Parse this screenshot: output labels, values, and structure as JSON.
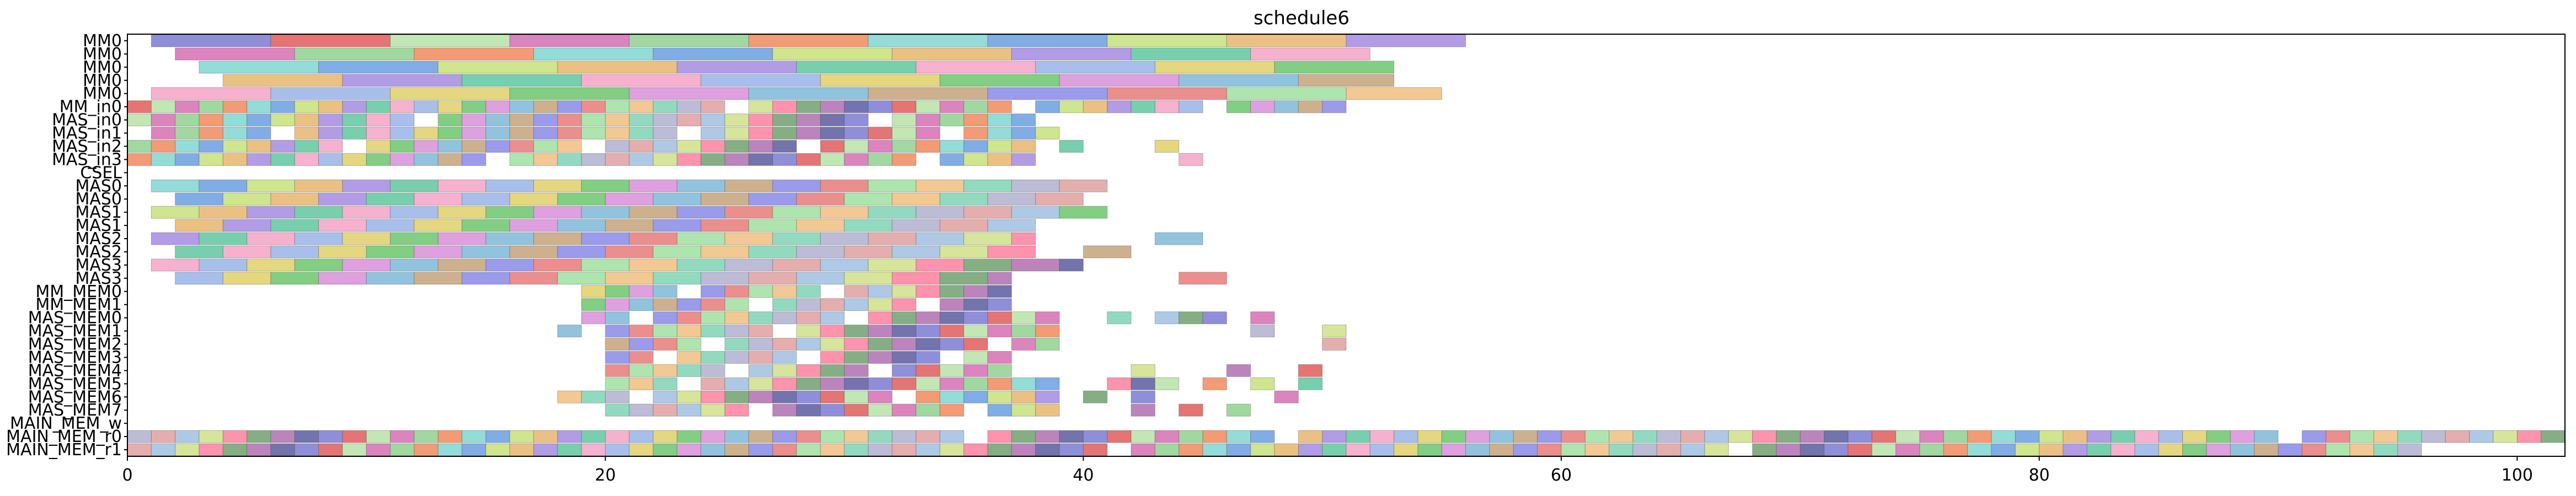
{
  "chart_data": {
    "type": "gantt",
    "title": "schedule6",
    "xlim": [
      0,
      102
    ],
    "xticks": [
      0,
      20,
      40,
      60,
      80,
      100
    ],
    "rows": [
      {
        "label": "MM0",
        "kind": "long",
        "start": 1,
        "end": 56,
        "step": 5,
        "offset": 0
      },
      {
        "label": "MM0",
        "kind": "long",
        "start": 2,
        "end": 52,
        "step": 5,
        "offset": 3
      },
      {
        "label": "MM0",
        "kind": "long",
        "start": 3,
        "end": 53,
        "step": 5,
        "offset": 6
      },
      {
        "label": "MM0",
        "kind": "long",
        "start": 4,
        "end": 53,
        "step": 5,
        "offset": 9
      },
      {
        "label": "MM0",
        "kind": "long",
        "start": 1,
        "end": 55,
        "step": 5,
        "offset": 12
      },
      {
        "label": "MM_in0",
        "kind": "short",
        "start": 0,
        "end": 51,
        "step": 1,
        "offset": 1,
        "gaps": [
          25,
          37,
          45
        ],
        "extra": []
      },
      {
        "label": "MAS_in0",
        "kind": "short",
        "start": 0,
        "end": 38,
        "step": 1,
        "offset": 2,
        "gaps": [
          12,
          31
        ],
        "extra": []
      },
      {
        "label": "MAS_in1",
        "kind": "short",
        "start": 1,
        "end": 39,
        "step": 1,
        "offset": 3,
        "gaps": [
          6,
          23,
          34
        ],
        "extra": []
      },
      {
        "label": "MAS_in2",
        "kind": "short",
        "start": 0,
        "end": 38,
        "step": 1,
        "offset": 4,
        "gaps": [
          9,
          19,
          28
        ],
        "extra": [
          39,
          43
        ]
      },
      {
        "label": "MAS_in3",
        "kind": "short",
        "start": 0,
        "end": 38,
        "step": 1,
        "offset": 5,
        "gaps": [
          15,
          33
        ],
        "extra": [
          44
        ]
      },
      {
        "label": "CSEL",
        "kind": "empty"
      },
      {
        "label": "MAS0",
        "kind": "med",
        "start": 1,
        "end": 41,
        "step": 2,
        "offset": 6
      },
      {
        "label": "MAS0",
        "kind": "med",
        "start": 2,
        "end": 40,
        "step": 2,
        "offset": 7
      },
      {
        "label": "MAS1",
        "kind": "med",
        "start": 1,
        "end": 39,
        "step": 2,
        "offset": 8,
        "extra": [
          39
        ]
      },
      {
        "label": "MAS1",
        "kind": "med",
        "start": 2,
        "end": 38,
        "step": 2,
        "offset": 9
      },
      {
        "label": "MAS2",
        "kind": "med",
        "start": 1,
        "end": 38,
        "step": 2,
        "offset": 10,
        "extra": [
          43
        ]
      },
      {
        "label": "MAS2",
        "kind": "med",
        "start": 2,
        "end": 38,
        "step": 2,
        "offset": 11,
        "extra": [
          40
        ]
      },
      {
        "label": "MAS3",
        "kind": "med",
        "start": 1,
        "end": 40,
        "step": 2,
        "offset": 12
      },
      {
        "label": "MAS3",
        "kind": "med",
        "start": 2,
        "end": 37,
        "step": 2,
        "offset": 13,
        "extra": [
          44
        ]
      },
      {
        "label": "MM_MEM0",
        "kind": "short",
        "start": 19,
        "end": 37,
        "step": 1,
        "offset": 14,
        "gaps": [
          23,
          29
        ],
        "extra": []
      },
      {
        "label": "MM_MEM1",
        "kind": "short",
        "start": 19,
        "end": 37,
        "step": 1,
        "offset": 15,
        "gaps": [
          26,
          33
        ],
        "extra": []
      },
      {
        "label": "MAS_MEM0",
        "kind": "short",
        "start": 19,
        "end": 39,
        "step": 1,
        "offset": 16,
        "gaps": [
          21,
          30
        ],
        "extra": [
          41,
          43,
          44,
          45,
          47
        ]
      },
      {
        "label": "MAS_MEM1",
        "kind": "short",
        "start": 18,
        "end": 39,
        "step": 1,
        "offset": 17,
        "gaps": [
          19,
          27
        ],
        "extra": [
          47,
          50
        ]
      },
      {
        "label": "MAS_MEM2",
        "kind": "short",
        "start": 20,
        "end": 39,
        "step": 1,
        "offset": 18,
        "gaps": [
          24,
          36
        ],
        "extra": [
          50
        ]
      },
      {
        "label": "MAS_MEM3",
        "kind": "short",
        "start": 20,
        "end": 37,
        "step": 1,
        "offset": 19,
        "gaps": [
          22,
          28,
          34
        ],
        "extra": []
      },
      {
        "label": "MAS_MEM4",
        "kind": "short",
        "start": 20,
        "end": 37,
        "step": 1,
        "offset": 20,
        "gaps": [
          25,
          31
        ],
        "extra": [
          42,
          46,
          49
        ]
      },
      {
        "label": "MAS_MEM5",
        "kind": "short",
        "start": 20,
        "end": 39,
        "step": 1,
        "offset": 21,
        "gaps": [
          23
        ],
        "extra": [
          41,
          42,
          43,
          45,
          47,
          49
        ]
      },
      {
        "label": "MAS_MEM6",
        "kind": "short",
        "start": 18,
        "end": 39,
        "step": 1,
        "offset": 22,
        "gaps": [
          21,
          32
        ],
        "extra": [
          40,
          42,
          48
        ]
      },
      {
        "label": "MAS_MEM7",
        "kind": "short",
        "start": 20,
        "end": 39,
        "step": 1,
        "offset": 23,
        "gaps": [
          26,
          35
        ],
        "extra": [
          42,
          44,
          46
        ]
      },
      {
        "label": "MAIN_MEM_w",
        "kind": "empty"
      },
      {
        "label": "MAIN_MEM_r0",
        "kind": "short",
        "start": 0,
        "end": 102,
        "step": 1,
        "offset": 24,
        "gaps": [
          35,
          48,
          90
        ],
        "extra": []
      },
      {
        "label": "MAIN_MEM_r1",
        "kind": "short",
        "start": 0,
        "end": 96,
        "step": 1,
        "offset": 25,
        "gaps": [
          41,
          67
        ],
        "extra": []
      }
    ],
    "palette": [
      "#7a7ad4",
      "#e05c5c",
      "#b8e2a8",
      "#d56fb3",
      "#8fd18f",
      "#f08a5d",
      "#80d6d0",
      "#6a9fe0",
      "#c7e07a",
      "#e8b66d",
      "#a48be0",
      "#5fc7a0",
      "#f5a3c7",
      "#9ab4e8",
      "#e0d06a",
      "#6cc56c",
      "#d88fd8",
      "#7fb8d8",
      "#c4a37a",
      "#8a8ae8",
      "#e87a7a",
      "#a0e0a0",
      "#f0c080",
      "#7fd4b4",
      "#b0b0d0",
      "#e0a0a0",
      "#a0c0e0",
      "#d0e08a",
      "#ff7f9f",
      "#70a070",
      "#b06fb0",
      "#5a5aa0"
    ]
  }
}
